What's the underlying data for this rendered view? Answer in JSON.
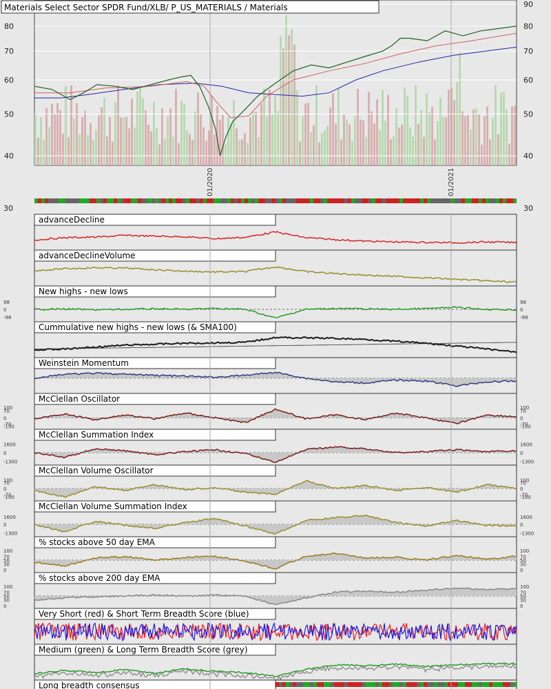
{
  "chart_data": {
    "type": "line",
    "title": "Materials Select Sector SPDR Fund/XLB/ P_US_MATERIALS / Materials",
    "price_panel": {
      "y_axis": "log",
      "ylim": [
        38,
        92
      ],
      "left_ticks": [
        40,
        50,
        60,
        70,
        80,
        90
      ],
      "right_ticks": [
        40,
        50,
        60,
        70,
        80,
        90
      ],
      "date_ticks": [
        "01/2020",
        "01/2021"
      ],
      "price_series": [
        [
          0,
          58
        ],
        [
          20,
          57
        ],
        [
          40,
          54
        ],
        [
          55,
          56
        ],
        [
          70,
          58.5
        ],
        [
          90,
          58
        ],
        [
          110,
          57
        ],
        [
          130,
          58.5
        ],
        [
          150,
          60
        ],
        [
          165,
          61
        ],
        [
          175,
          61.5
        ],
        [
          185,
          58
        ],
        [
          195,
          52
        ],
        [
          203,
          46
        ],
        [
          208,
          40
        ],
        [
          214,
          44
        ],
        [
          222,
          48
        ],
        [
          235,
          51
        ],
        [
          250,
          55
        ],
        [
          270,
          59
        ],
        [
          290,
          63
        ],
        [
          310,
          65
        ],
        [
          330,
          64
        ],
        [
          350,
          66
        ],
        [
          370,
          68
        ],
        [
          390,
          70
        ],
        [
          400,
          72
        ],
        [
          410,
          75
        ],
        [
          420,
          75
        ],
        [
          440,
          74
        ],
        [
          460,
          78
        ],
        [
          480,
          76
        ],
        [
          500,
          78
        ],
        [
          520,
          79
        ],
        [
          540,
          80
        ]
      ],
      "ma_short": [
        [
          0,
          56
        ],
        [
          40,
          56
        ],
        [
          80,
          57.5
        ],
        [
          130,
          58
        ],
        [
          170,
          59.5
        ],
        [
          190,
          58
        ],
        [
          205,
          53
        ],
        [
          220,
          49
        ],
        [
          240,
          49.5
        ],
        [
          260,
          55
        ],
        [
          290,
          60
        ],
        [
          330,
          63
        ],
        [
          370,
          65.5
        ],
        [
          410,
          69
        ],
        [
          450,
          72
        ],
        [
          490,
          74
        ],
        [
          540,
          77
        ]
      ],
      "ma_long": [
        [
          0,
          54.5
        ],
        [
          30,
          54.5
        ],
        [
          60,
          55.5
        ],
        [
          100,
          57
        ],
        [
          140,
          58.5
        ],
        [
          180,
          59
        ],
        [
          210,
          58
        ],
        [
          240,
          56
        ],
        [
          270,
          55.5
        ],
        [
          300,
          55
        ],
        [
          330,
          56
        ],
        [
          360,
          60
        ],
        [
          390,
          63
        ],
        [
          430,
          66
        ],
        [
          470,
          68.5
        ],
        [
          540,
          71.5
        ]
      ]
    },
    "panels": [
      {
        "title": "advanceDecline",
        "color": "#dd2222",
        "fill": false,
        "values": [
          0.62,
          0.5,
          0.47,
          0.38,
          0.42,
          0.45,
          0.55,
          0.48,
          0.2,
          0.5,
          0.6,
          0.68,
          0.72,
          0.74,
          0.76,
          0.72,
          0.75
        ]
      },
      {
        "title": "advanceDeclineVolume",
        "color": "#9a8c2a",
        "fill": false,
        "values": [
          0.35,
          0.25,
          0.2,
          0.22,
          0.3,
          0.38,
          0.42,
          0.4,
          0.15,
          0.4,
          0.5,
          0.58,
          0.65,
          0.72,
          0.8,
          0.88,
          0.95
        ]
      },
      {
        "title": "New highs - new lows",
        "color": "#2a9a2a",
        "fill": false,
        "zero": 0.5,
        "left_ticks": [
          [
            "98",
            0.1
          ],
          [
            "0",
            0.5
          ],
          [
            "-98",
            0.9
          ]
        ],
        "right_ticks": [
          [
            "98",
            0.1
          ],
          [
            "0",
            0.5
          ],
          [
            "-98",
            0.9
          ]
        ],
        "values": [
          0.5,
          0.48,
          0.52,
          0.5,
          0.47,
          0.5,
          0.45,
          0.5,
          0.95,
          0.5,
          0.45,
          0.48,
          0.5,
          0.46,
          0.4,
          0.5,
          0.52
        ]
      },
      {
        "title": "Cummulative new highs - new lows (& SMA100)",
        "color": "#1a1a1a",
        "fill": false,
        "thick": true,
        "values": [
          0.75,
          0.7,
          0.6,
          0.5,
          0.45,
          0.4,
          0.38,
          0.35,
          0.1,
          0.12,
          0.15,
          0.2,
          0.3,
          0.4,
          0.55,
          0.7,
          0.85
        ]
      },
      {
        "title": "Weinstein Momentum",
        "color": "#303a80",
        "fill": true,
        "zero": 0.35,
        "values": [
          0.35,
          0.15,
          0.1,
          0.15,
          0.2,
          0.25,
          0.3,
          0.2,
          0.05,
          0.35,
          0.55,
          0.6,
          0.45,
          0.5,
          0.75,
          0.55,
          0.5
        ]
      },
      {
        "title": "McClellan Oscillator",
        "color": "#7a1a1a",
        "fill": true,
        "zero": 0.55,
        "left_ticks": [
          [
            "100",
            0.0
          ],
          [
            "70",
            0.18
          ],
          [
            "0",
            0.55
          ],
          [
            "-70",
            0.85
          ],
          [
            "-100",
            0.98
          ]
        ],
        "right_ticks": [
          [
            "100",
            0.0
          ],
          [
            "70",
            0.18
          ],
          [
            "0",
            0.55
          ],
          [
            "-70",
            0.85
          ],
          [
            "-100",
            0.98
          ]
        ],
        "values": [
          0.6,
          0.35,
          0.65,
          0.4,
          0.6,
          0.3,
          0.55,
          0.8,
          0.1,
          0.6,
          0.4,
          0.65,
          0.3,
          0.55,
          0.85,
          0.4,
          0.5
        ]
      },
      {
        "title": "McClellan Summation Index",
        "color": "#7a1a1a",
        "fill": true,
        "zero": 0.5,
        "left_ticks": [
          [
            "1600",
            0.05
          ],
          [
            "0",
            0.5
          ],
          [
            "-1300",
            0.95
          ]
        ],
        "right_ticks": [
          [
            "1600",
            0.05
          ],
          [
            "0",
            0.5
          ],
          [
            "-1300",
            0.95
          ]
        ],
        "values": [
          0.5,
          0.75,
          0.3,
          0.4,
          0.6,
          0.45,
          0.35,
          0.55,
          1.0,
          0.35,
          0.2,
          0.3,
          0.5,
          0.45,
          0.35,
          0.45,
          0.4
        ]
      },
      {
        "title": "McClellan Volume Oscillator",
        "color": "#9a8c2a",
        "fill": true,
        "zero": 0.5,
        "left_ticks": [
          [
            "100",
            0.05
          ],
          [
            "70",
            0.2
          ],
          [
            "0",
            0.5
          ],
          [
            "-70",
            0.8
          ],
          [
            "-100",
            0.92
          ]
        ],
        "right_ticks": [
          [
            "100",
            0.05
          ],
          [
            "70",
            0.2
          ],
          [
            "0",
            0.5
          ],
          [
            "-70",
            0.8
          ],
          [
            "-100",
            0.92
          ]
        ],
        "values": [
          0.6,
          0.95,
          0.4,
          0.6,
          0.3,
          0.55,
          0.45,
          0.7,
          0.8,
          0.1,
          0.5,
          0.35,
          0.6,
          0.45,
          0.7,
          0.3,
          0.5
        ]
      },
      {
        "title": "McClellan Volume Summation Index",
        "color": "#9a8c2a",
        "fill": true,
        "zero": 0.5,
        "left_ticks": [
          [
            "1600",
            0.1
          ],
          [
            "0",
            0.5
          ],
          [
            "-1300",
            0.95
          ]
        ],
        "right_ticks": [
          [
            "1600",
            0.1
          ],
          [
            "0",
            0.5
          ],
          [
            "-1300",
            0.95
          ]
        ],
        "values": [
          0.5,
          0.9,
          0.35,
          0.55,
          0.7,
          0.4,
          0.2,
          0.6,
          1.0,
          0.3,
          0.15,
          0.05,
          0.4,
          0.6,
          0.3,
          0.55,
          0.6
        ]
      },
      {
        "title": "% stocks above 50 day EMA",
        "color": "#9a7a20",
        "fill": true,
        "zero": 0.5,
        "left_ticks": [
          [
            "100",
            0.0
          ],
          [
            "70",
            0.3
          ],
          [
            "50",
            0.5
          ],
          [
            "30",
            0.7
          ],
          [
            "0",
            1.0
          ]
        ],
        "right_ticks": [
          [
            "100",
            0.0
          ],
          [
            "70",
            0.3
          ],
          [
            "50",
            0.5
          ],
          [
            "30",
            0.7
          ],
          [
            "0",
            1.0
          ]
        ],
        "values": [
          0.6,
          0.8,
          0.4,
          0.3,
          0.5,
          0.35,
          0.3,
          0.55,
          0.95,
          0.3,
          0.15,
          0.4,
          0.35,
          0.5,
          0.25,
          0.45,
          0.3
        ]
      },
      {
        "title": "% stocks above 200 day EMA",
        "color": "#888888",
        "fill": true,
        "zero": 0.5,
        "left_ticks": [
          [
            "100",
            0.0
          ],
          [
            "70",
            0.3
          ],
          [
            "50",
            0.5
          ],
          [
            "30",
            0.7
          ],
          [
            "0",
            1.0
          ]
        ],
        "right_ticks": [
          [
            "100",
            0.0
          ],
          [
            "70",
            0.3
          ],
          [
            "50",
            0.5
          ],
          [
            "30",
            0.7
          ],
          [
            "0",
            1.0
          ]
        ],
        "values": [
          0.7,
          0.6,
          0.55,
          0.5,
          0.45,
          0.5,
          0.45,
          0.5,
          0.95,
          0.6,
          0.3,
          0.25,
          0.3,
          0.2,
          0.1,
          0.15,
          0.15
        ]
      },
      {
        "title": "Very Short (red) & Short Term Breadth Score (blue)",
        "color": "#1a1aee",
        "color2": "#ee1a1a",
        "noisy": true,
        "values": [
          0.5,
          0.5,
          0.5,
          0.5,
          0.5,
          0.5,
          0.5,
          0.5,
          0.5,
          0.5,
          0.5,
          0.5,
          0.5,
          0.5,
          0.5,
          0.5,
          0.5
        ]
      },
      {
        "title": "Medium (green) & Long Term Breadth Score (grey)",
        "color": "#2a9a2a",
        "color2": "#888888",
        "fill": false,
        "values": [
          0.8,
          0.65,
          0.75,
          0.6,
          0.8,
          0.55,
          0.7,
          0.75,
          0.95,
          0.6,
          0.35,
          0.4,
          0.3,
          0.45,
          0.35,
          0.3,
          0.3
        ]
      },
      {
        "title": "Long breadth consensus",
        "color": "#000000",
        "fill": false,
        "strip": true,
        "values": []
      }
    ]
  }
}
